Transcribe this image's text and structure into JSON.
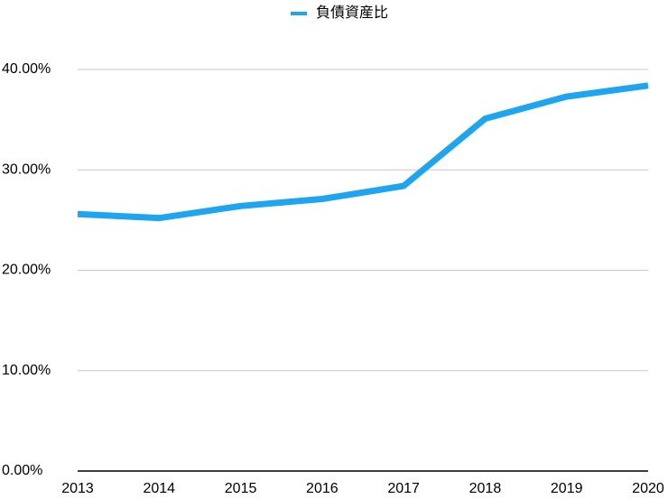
{
  "chart_data": {
    "type": "line",
    "categories": [
      "2013",
      "2014",
      "2015",
      "2016",
      "2017",
      "2018",
      "2019",
      "2020"
    ],
    "series": [
      {
        "name": "負債資産比",
        "color": "#1ea5ef",
        "values": [
          25.6,
          25.2,
          26.4,
          27.1,
          28.4,
          35.1,
          37.3,
          38.4
        ]
      }
    ],
    "ylim": [
      0,
      40
    ],
    "yticks": [
      {
        "value": 0,
        "label": "0.00%"
      },
      {
        "value": 10,
        "label": "10.00%"
      },
      {
        "value": 20,
        "label": "20.00%"
      },
      {
        "value": 30,
        "label": "30.00%"
      },
      {
        "value": 40,
        "label": "40.00%"
      }
    ],
    "grid": true,
    "legend": "top"
  }
}
